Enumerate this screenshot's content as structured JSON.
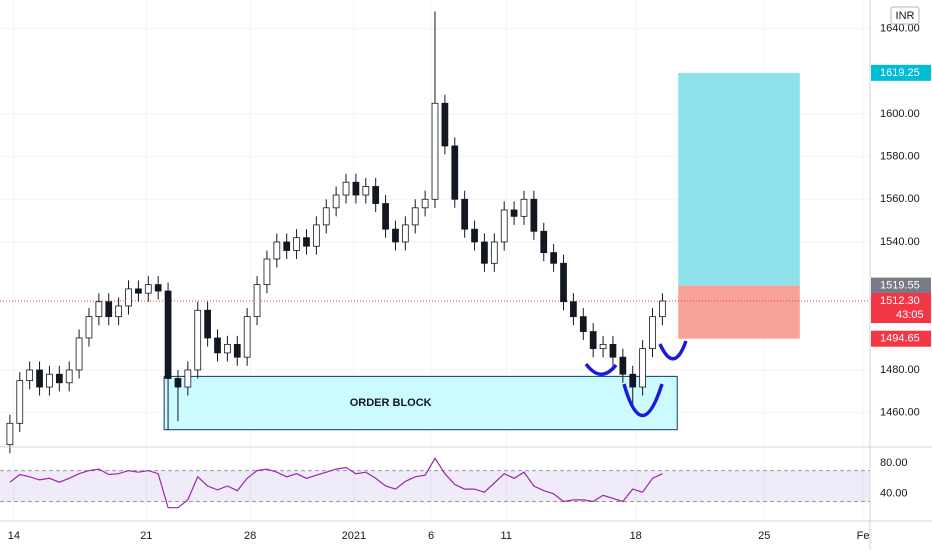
{
  "chart_data": [
    {
      "type": "candlestick",
      "xlim": [
        -1,
        87
      ],
      "xticks": [
        {
          "value": 0.4,
          "label": "14"
        },
        {
          "value": 13.8,
          "label": "21"
        },
        {
          "value": 24.3,
          "label": "28"
        },
        {
          "value": 34.8,
          "label": "2021"
        },
        {
          "value": 42.6,
          "label": "6"
        },
        {
          "value": 50.2,
          "label": "11"
        },
        {
          "value": 63.3,
          "label": "18"
        },
        {
          "value": 76.3,
          "label": "25"
        },
        {
          "value": 86.3,
          "label": "Fe"
        }
      ],
      "ylim": [
        1443.9,
        1653.4
      ],
      "yticks": [
        {
          "value": 1460,
          "label": "1460.00"
        },
        {
          "value": 1480,
          "label": "1480.00"
        },
        {
          "value": 1540,
          "label": "1540.00"
        },
        {
          "value": 1560,
          "label": "1560.00"
        },
        {
          "value": 1580,
          "label": "1580.00"
        },
        {
          "value": 1600,
          "label": "1600.00"
        },
        {
          "value": 1640,
          "label": "1640.00"
        }
      ],
      "grid": true,
      "currency": "INR",
      "up_color": "#ffffff",
      "down_color": "#131722",
      "wick_color": "#131722",
      "open": [
        1445,
        1455,
        1475,
        1480,
        1472,
        1478,
        1474,
        1480,
        1495,
        1505,
        1512,
        1505,
        1510,
        1518,
        1516,
        1520,
        1517,
        1476,
        1472,
        1480,
        1508,
        1495,
        1488,
        1492,
        1486,
        1505,
        1520,
        1532,
        1540,
        1536,
        1542,
        1538,
        1548,
        1556,
        1562,
        1568,
        1562,
        1566,
        1558,
        1546,
        1540,
        1548,
        1556,
        1560,
        1605,
        1585,
        1560,
        1546,
        1540,
        1530,
        1540,
        1555,
        1552,
        1560,
        1545,
        1535,
        1530,
        1512,
        1505,
        1498,
        1490,
        1492,
        1486,
        1478,
        1472,
        1490,
        1505
      ],
      "high": [
        1459,
        1479,
        1484,
        1484,
        1482,
        1482,
        1484,
        1499,
        1509,
        1516,
        1516,
        1514,
        1522,
        1522,
        1524,
        1524,
        1521,
        1480,
        1484,
        1512,
        1512,
        1499,
        1496,
        1496,
        1509,
        1524,
        1536,
        1544,
        1544,
        1546,
        1546,
        1552,
        1560,
        1566,
        1572,
        1572,
        1570,
        1570,
        1562,
        1550,
        1552,
        1560,
        1564,
        1648,
        1609,
        1589,
        1564,
        1550,
        1544,
        1544,
        1559,
        1559,
        1564,
        1564,
        1549,
        1539,
        1534,
        1516,
        1509,
        1502,
        1496,
        1496,
        1490,
        1482,
        1494,
        1509,
        1516
      ],
      "low": [
        1441,
        1451,
        1471,
        1468,
        1468,
        1470,
        1470,
        1476,
        1491,
        1501,
        1501,
        1501,
        1506,
        1512,
        1512,
        1513,
        1452,
        1456,
        1468,
        1476,
        1491,
        1484,
        1484,
        1482,
        1482,
        1501,
        1516,
        1528,
        1532,
        1532,
        1534,
        1534,
        1544,
        1552,
        1558,
        1558,
        1558,
        1554,
        1542,
        1536,
        1536,
        1544,
        1552,
        1556,
        1581,
        1556,
        1542,
        1536,
        1526,
        1526,
        1536,
        1548,
        1548,
        1541,
        1531,
        1526,
        1508,
        1501,
        1494,
        1486,
        1486,
        1482,
        1474,
        1462,
        1468,
        1486,
        1501
      ],
      "close": [
        1455,
        1475,
        1480,
        1472,
        1478,
        1474,
        1480,
        1495,
        1505,
        1512,
        1505,
        1510,
        1518,
        1516,
        1520,
        1517,
        1476,
        1472,
        1480,
        1508,
        1495,
        1488,
        1492,
        1486,
        1505,
        1520,
        1532,
        1540,
        1536,
        1542,
        1538,
        1548,
        1556,
        1562,
        1568,
        1562,
        1566,
        1558,
        1546,
        1540,
        1548,
        1556,
        1560,
        1605,
        1585,
        1560,
        1546,
        1540,
        1530,
        1540,
        1555,
        1552,
        1560,
        1545,
        1535,
        1530,
        1512,
        1505,
        1498,
        1490,
        1492,
        1486,
        1478,
        1472,
        1490,
        1505,
        1512.3
      ],
      "last": {
        "value": 1512.3,
        "label": "1512.30"
      },
      "countdown": "43:05",
      "order_block": {
        "label": "ORDER BLOCK",
        "x": [
          15.6,
          67.5
        ],
        "y": [
          1452,
          1477
        ]
      },
      "position": {
        "x": [
          67.6,
          79.9
        ],
        "target": 1619.25,
        "entry": 1519.55,
        "stop": 1494.65
      }
    },
    {
      "type": "line",
      "ylim": [
        6,
        98
      ],
      "yticks": [
        {
          "value": 40,
          "label": "40.00"
        },
        {
          "value": 80,
          "label": "80.00"
        }
      ],
      "band": [
        30,
        70
      ],
      "color": "#9c27b0",
      "values": [
        55,
        65,
        62,
        58,
        60,
        55,
        60,
        66,
        70,
        72,
        65,
        66,
        70,
        68,
        70,
        66,
        22,
        22,
        32,
        62,
        50,
        45,
        50,
        44,
        60,
        70,
        72,
        68,
        62,
        66,
        60,
        64,
        68,
        72,
        74,
        66,
        68,
        60,
        50,
        46,
        56,
        62,
        64,
        86,
        66,
        52,
        46,
        46,
        42,
        54,
        66,
        60,
        68,
        50,
        44,
        40,
        30,
        32,
        32,
        30,
        38,
        34,
        30,
        46,
        42,
        60,
        66
      ]
    }
  ]
}
